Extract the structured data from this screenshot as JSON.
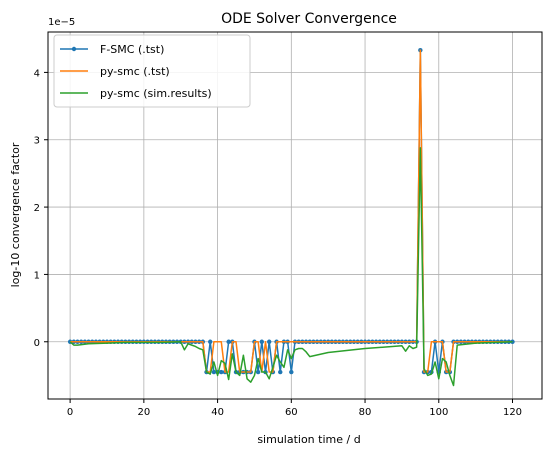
{
  "chart_data": {
    "type": "line",
    "title": "ODE Solver Convergence",
    "xlabel": "simulation time / d",
    "ylabel": "log-10 convergence factor",
    "offset_label": "1e−5",
    "xlim": [
      -6,
      128
    ],
    "ylim": [
      -0.85,
      4.6
    ],
    "xticks": [
      0,
      20,
      40,
      60,
      80,
      100,
      120
    ],
    "yticks": [
      0,
      1,
      2,
      3,
      4
    ],
    "grid": true,
    "legend_position": "top-left",
    "series": [
      {
        "name": "F-SMC (.tst)",
        "color": "#1f77b4",
        "marker": "circle",
        "x": [
          0,
          1,
          2,
          3,
          4,
          5,
          6,
          7,
          8,
          9,
          10,
          11,
          12,
          13,
          14,
          15,
          16,
          17,
          18,
          19,
          20,
          21,
          22,
          23,
          24,
          25,
          26,
          27,
          28,
          29,
          30,
          31,
          32,
          33,
          34,
          35,
          36,
          37,
          38,
          39,
          40,
          41,
          42,
          43,
          44,
          45,
          46,
          47,
          48,
          49,
          50,
          51,
          52,
          53,
          54,
          55,
          56,
          57,
          58,
          59,
          60,
          61,
          62,
          63,
          64,
          65,
          66,
          67,
          68,
          69,
          70,
          71,
          72,
          73,
          74,
          75,
          76,
          77,
          78,
          79,
          80,
          81,
          82,
          83,
          84,
          85,
          86,
          87,
          88,
          89,
          90,
          91,
          92,
          93,
          94,
          95,
          96,
          97,
          98,
          99,
          100,
          101,
          102,
          103,
          104,
          105,
          106,
          107,
          108,
          109,
          110,
          111,
          112,
          113,
          114,
          115,
          116,
          117,
          118,
          119,
          120
        ],
        "values": [
          0,
          0,
          0,
          0,
          0,
          0,
          0,
          0,
          0,
          0,
          0,
          0,
          0,
          0,
          0,
          0,
          0,
          0,
          0,
          0,
          0,
          0,
          0,
          0,
          0,
          0,
          0,
          0,
          0,
          0,
          0,
          0,
          0,
          0,
          0,
          0,
          0,
          -0.45,
          0,
          -0.45,
          -0.45,
          -0.45,
          -0.45,
          0,
          0,
          -0.45,
          -0.45,
          -0.45,
          -0.45,
          -0.45,
          0,
          -0.45,
          0,
          -0.45,
          0,
          -0.45,
          0,
          -0.45,
          0,
          0,
          -0.45,
          0,
          0,
          0,
          0,
          0,
          0,
          0,
          0,
          0,
          0,
          0,
          0,
          0,
          0,
          0,
          0,
          0,
          0,
          0,
          0,
          0,
          0,
          0,
          0,
          0,
          0,
          0,
          0,
          0,
          0,
          0,
          0,
          0,
          0,
          4.33,
          -0.45,
          -0.45,
          -0.45,
          0,
          -0.45,
          0,
          -0.45,
          -0.45,
          0,
          0,
          0,
          0,
          0,
          0,
          0,
          0,
          0,
          0,
          0,
          0,
          0,
          0,
          0,
          0,
          0
        ]
      },
      {
        "name": "py-smc (.tst)",
        "color": "#ff7f0e",
        "marker": "none",
        "x": [
          0,
          36,
          37,
          38,
          39,
          40,
          41,
          42,
          43,
          44,
          45,
          46,
          47,
          48,
          49,
          50,
          51,
          52,
          53,
          54,
          55,
          56,
          57,
          58,
          59,
          60,
          61,
          94,
          95,
          96,
          97,
          98,
          99,
          100,
          101,
          102,
          103,
          104,
          120
        ],
        "values": [
          0,
          0,
          -0.45,
          -0.45,
          0,
          0,
          0,
          -0.45,
          -0.45,
          0,
          0,
          -0.45,
          -0.45,
          -0.45,
          -0.45,
          0,
          0,
          -0.45,
          0,
          -0.45,
          -0.45,
          0,
          0,
          0,
          0,
          0,
          0,
          0,
          4.33,
          -0.45,
          -0.45,
          0,
          0,
          0,
          0,
          -0.45,
          -0.45,
          0,
          0
        ]
      },
      {
        "name": "py-smc (sim.results)",
        "color": "#2ca02c",
        "marker": "none",
        "x": [
          0,
          1,
          2,
          5,
          10,
          15,
          20,
          25,
          30,
          31,
          32,
          33,
          34,
          35,
          36,
          37,
          38,
          39,
          40,
          41,
          42,
          43,
          44,
          45,
          46,
          47,
          48,
          49,
          50,
          51,
          52,
          53,
          54,
          55,
          56,
          57,
          58,
          59,
          60,
          61,
          62,
          63,
          64,
          65,
          70,
          80,
          90,
          91,
          92,
          93,
          94,
          95,
          96,
          97,
          98,
          99,
          100,
          101,
          102,
          103,
          104,
          105,
          110,
          120
        ],
        "values": [
          0,
          -0.05,
          -0.05,
          -0.03,
          -0.02,
          -0.01,
          -0.01,
          -0.01,
          0,
          -0.12,
          -0.03,
          -0.05,
          -0.07,
          -0.1,
          -0.12,
          -0.45,
          -0.48,
          -0.3,
          -0.5,
          -0.28,
          -0.32,
          -0.56,
          -0.18,
          -0.45,
          -0.5,
          -0.2,
          -0.55,
          -0.6,
          -0.5,
          -0.25,
          -0.45,
          -0.45,
          -0.55,
          -0.38,
          -0.2,
          -0.3,
          -0.38,
          -0.12,
          -0.25,
          -0.12,
          -0.1,
          -0.1,
          -0.15,
          -0.22,
          -0.16,
          -0.1,
          -0.06,
          -0.14,
          -0.06,
          -0.1,
          -0.08,
          2.88,
          -0.4,
          -0.5,
          -0.48,
          -0.3,
          -0.55,
          -0.25,
          -0.3,
          -0.5,
          -0.65,
          -0.05,
          -0.02,
          0
        ]
      }
    ]
  }
}
